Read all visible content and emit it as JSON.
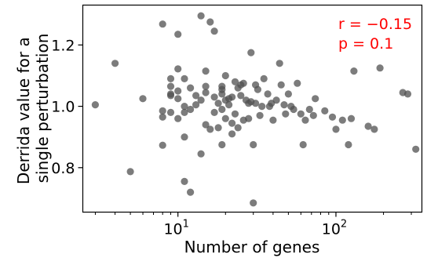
{
  "chart_data": {
    "type": "scatter",
    "xlabel": "Number of genes",
    "ylabel_lines": [
      "Derrida value for a",
      "single perturbation"
    ],
    "xscale": "log",
    "xlim": [
      2.5,
      350
    ],
    "ylim": [
      0.655,
      1.33
    ],
    "x_ticks": [
      {
        "value": 10,
        "base": "10",
        "exp": "1"
      },
      {
        "value": 100,
        "base": "10",
        "exp": "2"
      }
    ],
    "y_ticks": [
      {
        "value": 0.8,
        "label": "0.8"
      },
      {
        "value": 1.0,
        "label": "1.0"
      },
      {
        "value": 1.2,
        "label": "1.2"
      }
    ],
    "annotations": [
      "r = −0.15",
      "p = 0.1"
    ],
    "annotation_color": "#ff0000",
    "point_color": "#505050",
    "point_opacity": 0.75,
    "grid": false,
    "points": [
      [
        3,
        1.005
      ],
      [
        4,
        1.14
      ],
      [
        5,
        0.787
      ],
      [
        6,
        1.025
      ],
      [
        8,
        1.268
      ],
      [
        8,
        0.985
      ],
      [
        8,
        0.965
      ],
      [
        8,
        0.873
      ],
      [
        9,
        1.09
      ],
      [
        9,
        1.065
      ],
      [
        9,
        1.04
      ],
      [
        9,
        1.035
      ],
      [
        9,
        0.98
      ],
      [
        10,
        1.235
      ],
      [
        10,
        1.122
      ],
      [
        10,
        1.05
      ],
      [
        10,
        1.025
      ],
      [
        10,
        0.96
      ],
      [
        11,
        1.09
      ],
      [
        11,
        1.0
      ],
      [
        11,
        0.98
      ],
      [
        11,
        0.9
      ],
      [
        11,
        0.755
      ],
      [
        12,
        1.06
      ],
      [
        12,
        0.99
      ],
      [
        12,
        0.72
      ],
      [
        13,
        1.035
      ],
      [
        13,
        1.005
      ],
      [
        14,
        1.295
      ],
      [
        14,
        1.02
      ],
      [
        14,
        0.845
      ],
      [
        15,
        1.115
      ],
      [
        15,
        1.065
      ],
      [
        15,
        1.045
      ],
      [
        15,
        0.94
      ],
      [
        16,
        1.275
      ],
      [
        16,
        0.925
      ],
      [
        17,
        1.245
      ],
      [
        17,
        1.03
      ],
      [
        17,
        0.98
      ],
      [
        18,
        1.01
      ],
      [
        18,
        0.93
      ],
      [
        19,
        1.065
      ],
      [
        19,
        1.055
      ],
      [
        19,
        1.04
      ],
      [
        19,
        0.99
      ],
      [
        19,
        0.875
      ],
      [
        20,
        1.1
      ],
      [
        20,
        1.02
      ],
      [
        20,
        0.96
      ],
      [
        21,
        1.025
      ],
      [
        21,
        1.005
      ],
      [
        22,
        1.03
      ],
      [
        22,
        0.945
      ],
      [
        22,
        0.91
      ],
      [
        23,
        1.08
      ],
      [
        23,
        0.975
      ],
      [
        24,
        1.06
      ],
      [
        24,
        0.93
      ],
      [
        25,
        1.07
      ],
      [
        25,
        1.035
      ],
      [
        26,
        1.075
      ],
      [
        26,
        0.955
      ],
      [
        27,
        1.02
      ],
      [
        28,
        1.01
      ],
      [
        28,
        0.96
      ],
      [
        29,
        1.175
      ],
      [
        29,
        1.015
      ],
      [
        30,
        0.875
      ],
      [
        30,
        0.685
      ],
      [
        31,
        1.07
      ],
      [
        31,
        1.01
      ],
      [
        32,
        1.055
      ],
      [
        33,
        0.97
      ],
      [
        34,
        1.0
      ],
      [
        35,
        1.09
      ],
      [
        37,
        1.04
      ],
      [
        38,
        1.0
      ],
      [
        39,
        1.01
      ],
      [
        40,
        0.955
      ],
      [
        42,
        1.02
      ],
      [
        44,
        1.14
      ],
      [
        45,
        1.07
      ],
      [
        47,
        1.005
      ],
      [
        48,
        0.975
      ],
      [
        50,
        1.04
      ],
      [
        52,
        1.0
      ],
      [
        54,
        0.99
      ],
      [
        57,
        1.075
      ],
      [
        60,
        0.975
      ],
      [
        62,
        0.875
      ],
      [
        64,
        0.955
      ],
      [
        68,
        0.99
      ],
      [
        72,
        0.97
      ],
      [
        74,
        1.025
      ],
      [
        85,
        0.985
      ],
      [
        95,
        0.965
      ],
      [
        100,
        0.925
      ],
      [
        110,
        0.955
      ],
      [
        120,
        0.875
      ],
      [
        125,
        0.96
      ],
      [
        130,
        1.115
      ],
      [
        160,
        0.935
      ],
      [
        175,
        0.925
      ],
      [
        190,
        1.125
      ],
      [
        265,
        1.045
      ],
      [
        285,
        1.04
      ],
      [
        320,
        0.86
      ]
    ]
  }
}
